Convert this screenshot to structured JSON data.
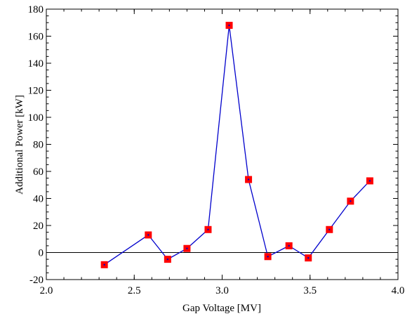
{
  "chart_data": {
    "type": "line",
    "xlabel": "Gap Voltage [MV]",
    "ylabel": "Additional Power [kW]",
    "xlim": [
      2.0,
      4.0
    ],
    "ylim": [
      -20,
      180
    ],
    "x_ticks": [
      "2.0",
      "2.5",
      "3.0",
      "3.5",
      "4.0"
    ],
    "y_ticks": [
      "-20",
      "0",
      "20",
      "40",
      "60",
      "80",
      "100",
      "120",
      "140",
      "160",
      "180"
    ],
    "x_tick_values": [
      2.0,
      2.5,
      3.0,
      3.5,
      4.0
    ],
    "y_tick_values": [
      -20,
      0,
      20,
      40,
      60,
      80,
      100,
      120,
      140,
      160,
      180
    ],
    "zero_line": true,
    "grid": false,
    "series": [
      {
        "x": [
          2.33,
          2.58,
          2.69,
          2.8,
          2.92,
          3.04,
          3.15,
          3.26,
          3.38,
          3.49,
          3.61,
          3.73,
          3.84
        ],
        "y": [
          -9,
          13,
          -5,
          3,
          17,
          168,
          54,
          -3,
          5,
          -4,
          17,
          38,
          53
        ],
        "line_color": "#0000cc",
        "marker_color": "#ff0000",
        "marker": "square"
      }
    ]
  }
}
